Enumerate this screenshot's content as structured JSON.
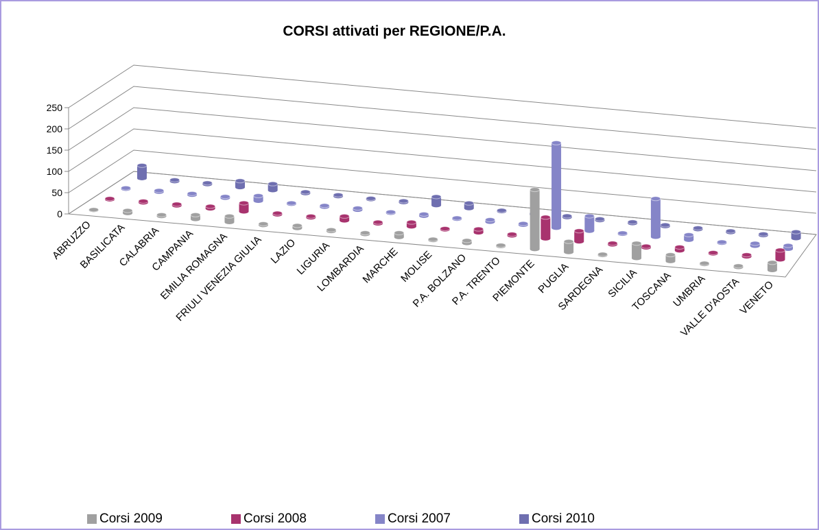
{
  "chart_data": {
    "type": "bar3d",
    "title": "CORSI attivati per REGIONE/P.A.",
    "categories": [
      "ABRUZZO",
      "BASILICATA",
      "CALABRIA",
      "CAMPANIA",
      "EMILIA ROMAGNA",
      "FRIULI VENEZIA GIULIA",
      "LAZIO",
      "LIGURIA",
      "LOMBARDIA",
      "MARCHE",
      "MOLISE",
      "P.A. BOLZANO",
      "P.A. TRENTO",
      "PIEMONTE",
      "PUGLIA",
      "SARDEGNA",
      "SICILIA",
      "TOSCANA",
      "UMBRIA",
      "VALLE D'AOSTA",
      "VENETO"
    ],
    "series": [
      {
        "name": "Corsi 2009",
        "color": "#a0a0a0",
        "values": [
          1,
          6,
          3,
          10,
          14,
          3,
          6,
          3,
          3,
          10,
          2,
          6,
          2,
          140,
          25,
          2,
          35,
          15,
          2,
          3,
          18
        ]
      },
      {
        "name": "Corsi 2008",
        "color": "#a8336e",
        "values": [
          2,
          3,
          3,
          5,
          20,
          3,
          3,
          10,
          3,
          10,
          2,
          8,
          3,
          50,
          25,
          3,
          3,
          8,
          2,
          4,
          22
        ]
      },
      {
        "name": "Corsi 2007",
        "color": "#8585c8",
        "values": [
          2,
          3,
          3,
          3,
          12,
          2,
          3,
          4,
          2,
          4,
          2,
          5,
          3,
          200,
          35,
          2,
          90,
          12,
          2,
          6,
          8
        ]
      },
      {
        "name": "Corsi 2010",
        "color": "#6f6fb0",
        "values": [
          30,
          3,
          3,
          15,
          15,
          3,
          3,
          2,
          3,
          20,
          12,
          2,
          2,
          3,
          3,
          3,
          3,
          3,
          3,
          3,
          15
        ]
      }
    ],
    "ylim": [
      0,
      250
    ],
    "yticks": [
      0,
      50,
      100,
      150,
      200,
      250
    ],
    "grid": true,
    "legend": "bottom"
  }
}
